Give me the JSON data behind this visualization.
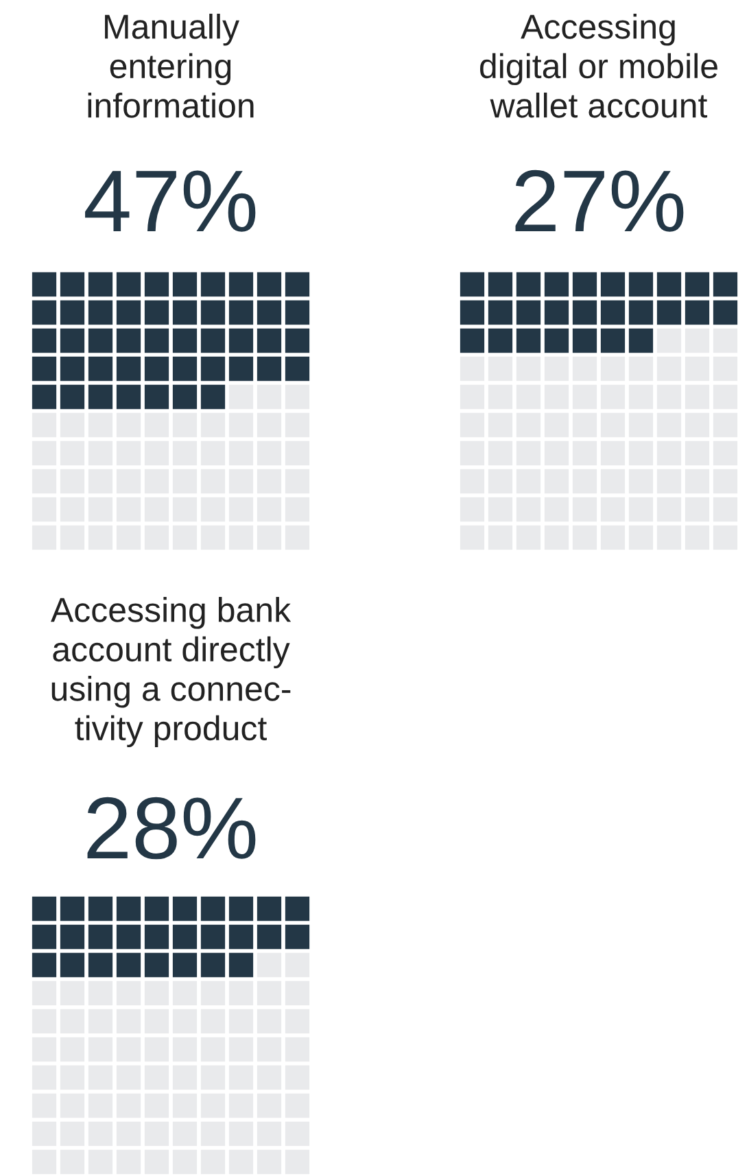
{
  "chart_data": [
    {
      "type": "other",
      "title": "Manually\nentering\ninformation",
      "values": [
        47
      ],
      "value_labels": [
        "47%"
      ],
      "color": "#233746"
    },
    {
      "type": "other",
      "title": "Accessing\ndigital or mobile\nwallet account",
      "values": [
        27
      ],
      "value_labels": [
        "27%"
      ],
      "color": "#233746"
    },
    {
      "type": "other",
      "title": "Accessing bank\naccount directly\nusing a connec-\ntivity product",
      "values": [
        28
      ],
      "value_labels": [
        "28%"
      ],
      "color": "#233746"
    }
  ]
}
